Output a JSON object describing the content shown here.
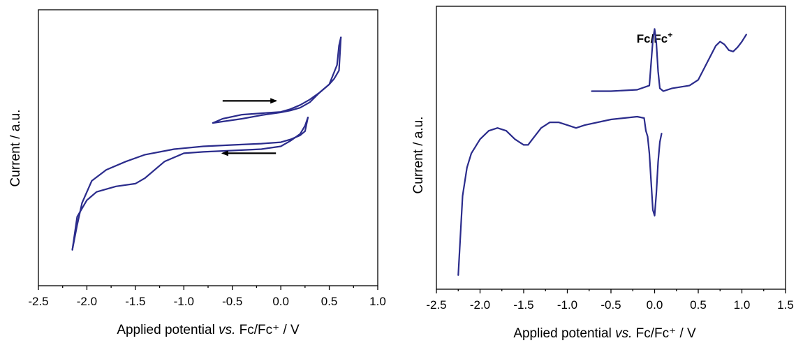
{
  "trace_color": "#2b2c8c",
  "arrow_color": "#000000",
  "chart_data": [
    {
      "type": "line",
      "xlabel_prefix": "Applied potential ",
      "xlabel_italic": "vs.",
      "xlabel_suffix": " Fc/Fc⁺ / V",
      "ylabel": "Current / a.u.",
      "xlim": [
        -2.5,
        1.0
      ],
      "ylim": [
        0,
        1
      ],
      "xticks": [
        -2.5,
        -2.0,
        -1.5,
        -1.0,
        -0.5,
        0.0,
        0.5,
        1.0
      ],
      "xtick_labels": [
        "-2.5",
        "-2.0",
        "-1.5",
        "-1.0",
        "-0.5",
        "0.0",
        "0.5",
        "1.0"
      ],
      "y_tick_labels_shown": false,
      "series": [
        {
          "x": [
            -0.7,
            -0.6,
            -0.4,
            -0.2,
            0.0,
            0.1,
            0.2,
            0.3,
            0.4,
            0.5,
            0.58,
            0.6,
            0.62
          ],
          "y": [
            0.59,
            0.605,
            0.62,
            0.625,
            0.63,
            0.64,
            0.655,
            0.675,
            0.7,
            0.73,
            0.8,
            0.87,
            0.9
          ]
        },
        {
          "x": [
            0.62,
            0.6,
            0.55,
            0.5,
            0.4,
            0.3,
            0.2,
            0.1,
            0.0,
            -0.2,
            -0.4,
            -0.6,
            -0.7
          ],
          "y": [
            0.9,
            0.78,
            0.75,
            0.73,
            0.7,
            0.665,
            0.645,
            0.635,
            0.628,
            0.618,
            0.605,
            0.595,
            0.59
          ]
        },
        {
          "x": [
            -2.15,
            -2.1,
            -2.0,
            -1.9,
            -1.7,
            -1.5,
            -1.4,
            -1.2,
            -1.0,
            -0.8,
            -0.5,
            -0.2,
            0.0,
            0.1,
            0.2,
            0.25,
            0.28
          ],
          "y": [
            0.13,
            0.25,
            0.31,
            0.34,
            0.36,
            0.37,
            0.39,
            0.45,
            0.48,
            0.485,
            0.49,
            0.495,
            0.505,
            0.525,
            0.55,
            0.58,
            0.61
          ]
        },
        {
          "x": [
            0.28,
            0.25,
            0.2,
            0.1,
            0.0,
            -0.2,
            -0.5,
            -0.8,
            -1.1,
            -1.4,
            -1.6,
            -1.8,
            -1.95,
            -2.05,
            -2.1,
            -2.15
          ],
          "y": [
            0.61,
            0.56,
            0.545,
            0.53,
            0.52,
            0.515,
            0.51,
            0.505,
            0.495,
            0.475,
            0.45,
            0.42,
            0.38,
            0.3,
            0.22,
            0.13
          ]
        }
      ],
      "arrows": [
        {
          "from": [
            -0.6,
            0.67
          ],
          "to": [
            -0.05,
            0.67
          ]
        },
        {
          "from": [
            -0.05,
            0.48
          ],
          "to": [
            -0.6,
            0.48
          ]
        }
      ]
    },
    {
      "type": "line",
      "xlabel_prefix": "Applied potential ",
      "xlabel_italic": "vs.",
      "xlabel_suffix": " Fc/Fc⁺ / V",
      "ylabel": "Current / a.u.",
      "xlim": [
        -2.5,
        1.5
      ],
      "ylim": [
        0,
        1
      ],
      "xticks": [
        -2.5,
        -2.0,
        -1.5,
        -1.0,
        -0.5,
        0.0,
        0.5,
        1.0,
        1.5
      ],
      "xtick_labels": [
        "-2.5",
        "-2.0",
        "-1.5",
        "-1.0",
        "-0.5",
        "0.0",
        "0.5",
        "1.0",
        "1.5"
      ],
      "y_tick_labels_shown": false,
      "annotation_text": "Fc/Fc",
      "annotation_sup": "+",
      "annotation_x": 0.0,
      "series": [
        {
          "x": [
            -2.25,
            -2.2,
            -2.15,
            -2.1,
            -2.0,
            -1.9,
            -1.8,
            -1.7,
            -1.6,
            -1.5,
            -1.45,
            -1.4,
            -1.3,
            -1.2,
            -1.1,
            -1.0,
            -0.9,
            -0.8,
            -0.5,
            -0.2,
            -0.12,
            -0.1
          ],
          "y": [
            0.05,
            0.33,
            0.43,
            0.48,
            0.53,
            0.56,
            0.57,
            0.56,
            0.53,
            0.51,
            0.51,
            0.53,
            0.57,
            0.59,
            0.59,
            0.58,
            0.57,
            0.58,
            0.6,
            0.61,
            0.605,
            0.56
          ]
        },
        {
          "x": [
            -0.1,
            -0.08,
            -0.06,
            -0.04,
            -0.02,
            0.0,
            0.02,
            0.04,
            0.06,
            0.08
          ],
          "y": [
            0.56,
            0.54,
            0.48,
            0.38,
            0.28,
            0.26,
            0.34,
            0.45,
            0.52,
            0.55
          ]
        },
        {
          "x": [
            -0.72,
            -0.5,
            -0.2,
            -0.06,
            -0.04,
            -0.02,
            0.0,
            0.02,
            0.04,
            0.06,
            0.1,
            0.2,
            0.4,
            0.5,
            0.6,
            0.7,
            0.75,
            0.8,
            0.85,
            0.9,
            0.95,
            1.0,
            1.05
          ],
          "y": [
            0.7,
            0.7,
            0.705,
            0.72,
            0.8,
            0.88,
            0.92,
            0.87,
            0.77,
            0.71,
            0.7,
            0.71,
            0.72,
            0.74,
            0.8,
            0.86,
            0.875,
            0.865,
            0.845,
            0.84,
            0.855,
            0.875,
            0.9
          ]
        }
      ]
    }
  ]
}
